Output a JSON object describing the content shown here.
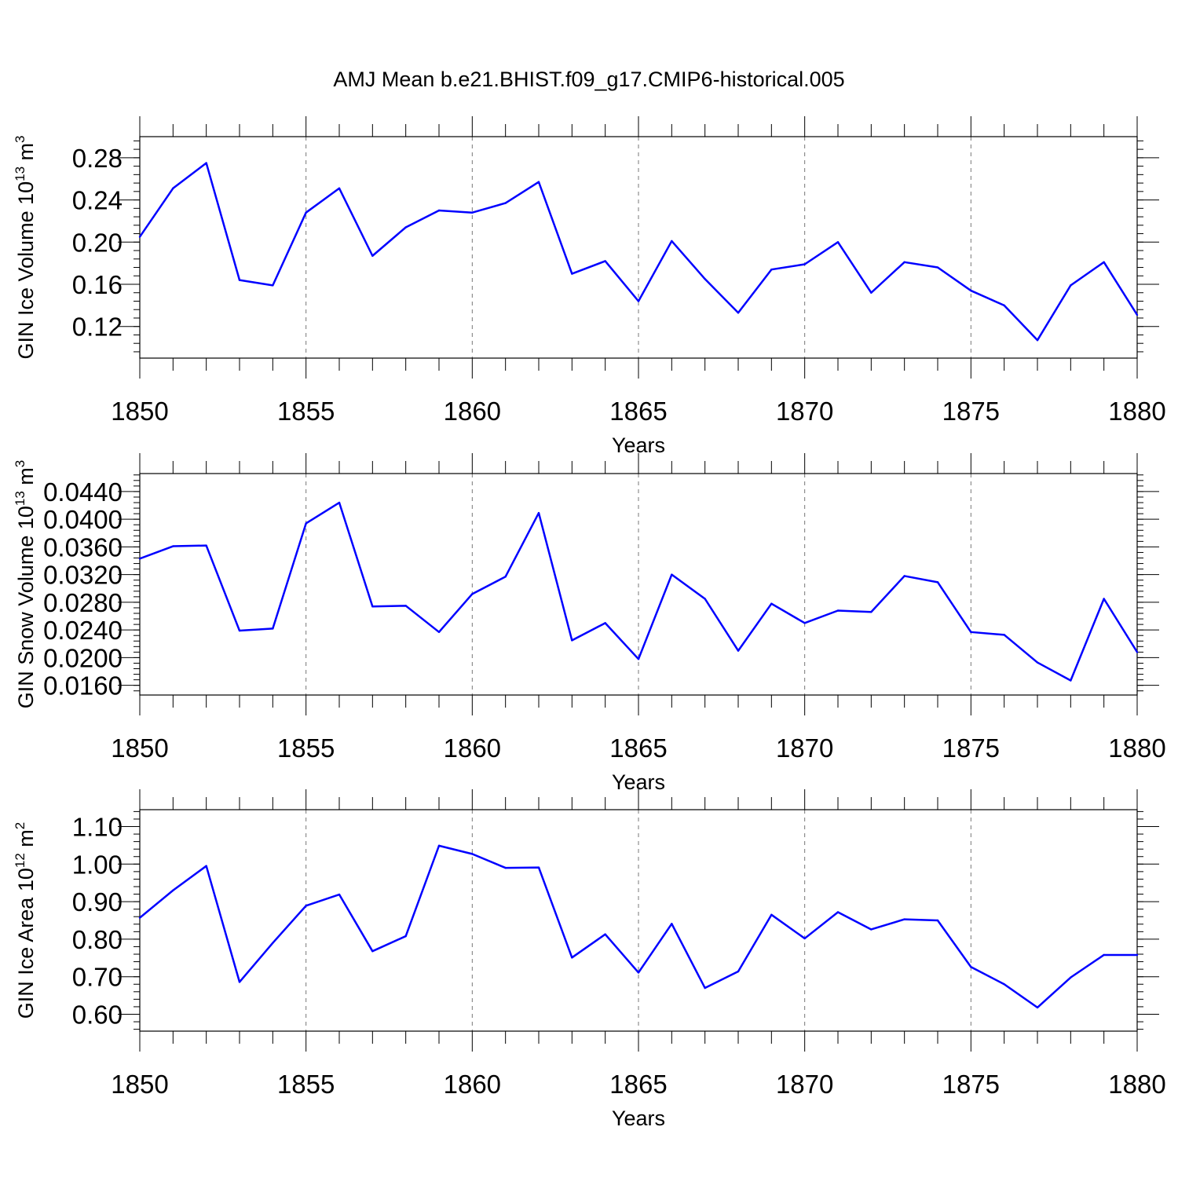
{
  "chart_data": {
    "title": "AMJ Mean b.e21.BHIST.f09_g17.CMIP6-historical.005",
    "panels": [
      {
        "type": "line",
        "ylabel_main": "GIN Ice Volume 10",
        "ylabel_sup": "13",
        "ylabel_unit": " m",
        "ylabel_unit_sup": "3",
        "xlabel": "Years",
        "xlim": [
          1850,
          1880
        ],
        "ylim": [
          0.09,
          0.3
        ],
        "yticks": [
          "0.12",
          "0.16",
          "0.20",
          "0.24",
          "0.28"
        ],
        "xticks": [
          "1850",
          "1855",
          "1860",
          "1865",
          "1870",
          "1875",
          "1880"
        ],
        "x": [
          1850,
          1851,
          1852,
          1853,
          1854,
          1855,
          1856,
          1857,
          1858,
          1859,
          1860,
          1861,
          1862,
          1863,
          1864,
          1865,
          1866,
          1867,
          1868,
          1869,
          1870,
          1871,
          1872,
          1873,
          1874,
          1875,
          1876,
          1877,
          1878,
          1879,
          1880
        ],
        "values": [
          0.205,
          0.251,
          0.275,
          0.164,
          0.159,
          0.228,
          0.251,
          0.187,
          0.214,
          0.23,
          0.228,
          0.237,
          0.257,
          0.17,
          0.182,
          0.144,
          0.201,
          0.165,
          0.133,
          0.174,
          0.179,
          0.2,
          0.152,
          0.181,
          0.176,
          0.154,
          0.14,
          0.107,
          0.159,
          0.181,
          0.131
        ]
      },
      {
        "type": "line",
        "ylabel_main": "GIN Snow Volume 10",
        "ylabel_sup": "13",
        "ylabel_unit": " m",
        "ylabel_unit_sup": "3",
        "xlabel": "Years",
        "xlim": [
          1850,
          1880
        ],
        "ylim": [
          0.0146,
          0.0466
        ],
        "yticks": [
          "0.0160",
          "0.0200",
          "0.0240",
          "0.0280",
          "0.0320",
          "0.0360",
          "0.0400",
          "0.0440"
        ],
        "xticks": [
          "1850",
          "1855",
          "1860",
          "1865",
          "1870",
          "1875",
          "1880"
        ],
        "x": [
          1850,
          1851,
          1852,
          1853,
          1854,
          1855,
          1856,
          1857,
          1858,
          1859,
          1860,
          1861,
          1862,
          1863,
          1864,
          1865,
          1866,
          1867,
          1868,
          1869,
          1870,
          1871,
          1872,
          1873,
          1874,
          1875,
          1876,
          1877,
          1878,
          1879,
          1880
        ],
        "values": [
          0.0343,
          0.0361,
          0.0362,
          0.0239,
          0.0242,
          0.0394,
          0.0424,
          0.0274,
          0.0275,
          0.0237,
          0.0292,
          0.0317,
          0.0409,
          0.0225,
          0.025,
          0.0198,
          0.032,
          0.0285,
          0.021,
          0.0278,
          0.025,
          0.0268,
          0.0266,
          0.0318,
          0.0309,
          0.0237,
          0.0233,
          0.0193,
          0.0167,
          0.0285,
          0.0208
        ]
      },
      {
        "type": "line",
        "ylabel_main": "GIN Ice Area 10",
        "ylabel_sup": "12",
        "ylabel_unit": " m",
        "ylabel_unit_sup": "2",
        "xlabel": "Years",
        "xlim": [
          1850,
          1880
        ],
        "ylim": [
          0.555,
          1.145
        ],
        "yticks": [
          "0.60",
          "0.70",
          "0.80",
          "0.90",
          "1.00",
          "1.10"
        ],
        "xticks": [
          "1850",
          "1855",
          "1860",
          "1865",
          "1870",
          "1875",
          "1880"
        ],
        "x": [
          1850,
          1851,
          1852,
          1853,
          1854,
          1855,
          1856,
          1857,
          1858,
          1859,
          1860,
          1861,
          1862,
          1863,
          1864,
          1865,
          1866,
          1867,
          1868,
          1869,
          1870,
          1871,
          1872,
          1873,
          1874,
          1875,
          1876,
          1877,
          1878,
          1879,
          1880
        ],
        "values": [
          0.857,
          0.93,
          0.995,
          0.686,
          0.79,
          0.889,
          0.919,
          0.768,
          0.808,
          1.049,
          1.027,
          0.99,
          0.991,
          0.751,
          0.813,
          0.711,
          0.841,
          0.67,
          0.714,
          0.865,
          0.802,
          0.872,
          0.826,
          0.853,
          0.85,
          0.726,
          0.68,
          0.618,
          0.698,
          0.758,
          0.758
        ]
      }
    ]
  },
  "colors": {
    "series": "#0000ff"
  }
}
